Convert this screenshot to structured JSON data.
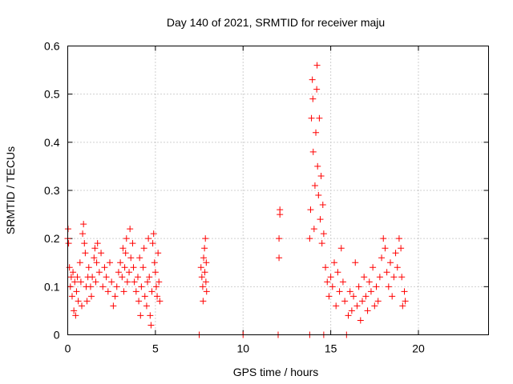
{
  "chart_data": {
    "type": "scatter",
    "title": "Day 140 of 2021, SRMTID for receiver maju",
    "xlabel": "GPS time / hours",
    "ylabel": "SRMTID / TECUs",
    "xlim": [
      0,
      24
    ],
    "ylim": [
      0,
      0.6
    ],
    "x_ticks": [
      0,
      5,
      10,
      15,
      20
    ],
    "y_ticks": [
      0,
      0.1,
      0.2,
      0.3,
      0.4,
      0.5,
      0.6
    ],
    "x_tick_labels": [
      "0",
      "5",
      "10",
      "15",
      "20"
    ],
    "y_tick_labels": [
      "0",
      "0.1",
      "0.2",
      "0.3",
      "0.4",
      "0.5",
      "0.6"
    ],
    "grid": true,
    "marker": "+",
    "series": [
      {
        "name": "SRMTID",
        "color": "#ff0000",
        "points": [
          [
            0.0,
            0.2
          ],
          [
            0.02,
            0.22
          ],
          [
            0.05,
            0.19
          ],
          [
            0.1,
            0.14
          ],
          [
            0.15,
            0.1
          ],
          [
            0.2,
            0.12
          ],
          [
            0.25,
            0.08
          ],
          [
            0.3,
            0.13
          ],
          [
            0.35,
            0.05
          ],
          [
            0.4,
            0.11
          ],
          [
            0.45,
            0.04
          ],
          [
            0.5,
            0.09
          ],
          [
            0.55,
            0.12
          ],
          [
            0.6,
            0.07
          ],
          [
            0.7,
            0.15
          ],
          [
            0.75,
            0.11
          ],
          [
            0.8,
            0.06
          ],
          [
            0.85,
            0.21
          ],
          [
            0.9,
            0.23
          ],
          [
            0.95,
            0.19
          ],
          [
            1.0,
            0.17
          ],
          [
            1.05,
            0.1
          ],
          [
            1.1,
            0.07
          ],
          [
            1.15,
            0.12
          ],
          [
            1.2,
            0.14
          ],
          [
            1.3,
            0.1
          ],
          [
            1.35,
            0.08
          ],
          [
            1.4,
            0.12
          ],
          [
            1.5,
            0.16
          ],
          [
            1.55,
            0.18
          ],
          [
            1.6,
            0.11
          ],
          [
            1.65,
            0.15
          ],
          [
            1.7,
            0.19
          ],
          [
            1.8,
            0.13
          ],
          [
            1.9,
            0.17
          ],
          [
            2.0,
            0.1
          ],
          [
            2.1,
            0.14
          ],
          [
            2.2,
            0.12
          ],
          [
            2.3,
            0.09
          ],
          [
            2.4,
            0.15
          ],
          [
            2.5,
            0.11
          ],
          [
            2.6,
            0.06
          ],
          [
            2.7,
            0.08
          ],
          [
            2.8,
            0.1
          ],
          [
            2.9,
            0.13
          ],
          [
            3.0,
            0.15
          ],
          [
            3.1,
            0.12
          ],
          [
            3.15,
            0.18
          ],
          [
            3.2,
            0.09
          ],
          [
            3.25,
            0.14
          ],
          [
            3.3,
            0.17
          ],
          [
            3.35,
            0.2
          ],
          [
            3.4,
            0.11
          ],
          [
            3.5,
            0.13
          ],
          [
            3.55,
            0.22
          ],
          [
            3.6,
            0.16
          ],
          [
            3.7,
            0.19
          ],
          [
            3.75,
            0.14
          ],
          [
            3.8,
            0.11
          ],
          [
            3.9,
            0.09
          ],
          [
            4.0,
            0.12
          ],
          [
            4.05,
            0.07
          ],
          [
            4.1,
            0.16
          ],
          [
            4.15,
            0.04
          ],
          [
            4.2,
            0.1
          ],
          [
            4.3,
            0.14
          ],
          [
            4.35,
            0.18
          ],
          [
            4.4,
            0.08
          ],
          [
            4.5,
            0.06
          ],
          [
            4.55,
            0.11
          ],
          [
            4.6,
            0.2
          ],
          [
            4.65,
            0.12
          ],
          [
            4.7,
            0.04
          ],
          [
            4.75,
            0.02
          ],
          [
            4.8,
            0.09
          ],
          [
            4.85,
            0.19
          ],
          [
            4.9,
            0.21
          ],
          [
            4.95,
            0.15
          ],
          [
            5.0,
            0.13
          ],
          [
            5.05,
            0.1
          ],
          [
            5.1,
            0.08
          ],
          [
            5.15,
            0.17
          ],
          [
            5.2,
            0.11
          ],
          [
            5.25,
            0.07
          ],
          [
            7.5,
            0.0
          ],
          [
            7.6,
            0.14
          ],
          [
            7.65,
            0.12
          ],
          [
            7.7,
            0.1
          ],
          [
            7.72,
            0.07
          ],
          [
            7.75,
            0.16
          ],
          [
            7.8,
            0.18
          ],
          [
            7.82,
            0.13
          ],
          [
            7.85,
            0.2
          ],
          [
            7.88,
            0.11
          ],
          [
            7.9,
            0.15
          ],
          [
            7.92,
            0.09
          ],
          [
            10.0,
            0.0
          ],
          [
            12.0,
            0.0
          ],
          [
            12.05,
            0.2
          ],
          [
            12.05,
            0.16
          ],
          [
            12.1,
            0.26
          ],
          [
            12.1,
            0.25
          ],
          [
            13.8,
            0.0
          ],
          [
            13.8,
            0.2
          ],
          [
            13.85,
            0.26
          ],
          [
            13.9,
            0.45
          ],
          [
            13.95,
            0.53
          ],
          [
            13.98,
            0.49
          ],
          [
            14.0,
            0.38
          ],
          [
            14.05,
            0.22
          ],
          [
            14.1,
            0.31
          ],
          [
            14.15,
            0.42
          ],
          [
            14.2,
            0.51
          ],
          [
            14.22,
            0.56
          ],
          [
            14.25,
            0.35
          ],
          [
            14.3,
            0.29
          ],
          [
            14.35,
            0.45
          ],
          [
            14.4,
            0.24
          ],
          [
            14.45,
            0.33
          ],
          [
            14.5,
            0.19
          ],
          [
            14.55,
            0.27
          ],
          [
            14.6,
            0.0
          ],
          [
            14.6,
            0.21
          ],
          [
            14.7,
            0.14
          ],
          [
            14.8,
            0.11
          ],
          [
            14.9,
            0.08
          ],
          [
            15.0,
            0.12
          ],
          [
            15.1,
            0.1
          ],
          [
            15.2,
            0.15
          ],
          [
            15.3,
            0.06
          ],
          [
            15.4,
            0.13
          ],
          [
            15.5,
            0.09
          ],
          [
            15.6,
            0.18
          ],
          [
            15.7,
            0.11
          ],
          [
            15.8,
            0.07
          ],
          [
            15.9,
            0.0
          ],
          [
            16.0,
            0.04
          ],
          [
            16.1,
            0.09
          ],
          [
            16.2,
            0.05
          ],
          [
            16.3,
            0.08
          ],
          [
            16.4,
            0.15
          ],
          [
            16.5,
            0.06
          ],
          [
            16.6,
            0.1
          ],
          [
            16.7,
            0.03
          ],
          [
            16.8,
            0.07
          ],
          [
            16.9,
            0.12
          ],
          [
            17.0,
            0.08
          ],
          [
            17.1,
            0.05
          ],
          [
            17.2,
            0.11
          ],
          [
            17.3,
            0.09
          ],
          [
            17.4,
            0.14
          ],
          [
            17.5,
            0.06
          ],
          [
            17.6,
            0.1
          ],
          [
            17.7,
            0.07
          ],
          [
            17.8,
            0.12
          ],
          [
            17.9,
            0.16
          ],
          [
            18.0,
            0.2
          ],
          [
            18.1,
            0.18
          ],
          [
            18.2,
            0.13
          ],
          [
            18.3,
            0.1
          ],
          [
            18.4,
            0.15
          ],
          [
            18.5,
            0.08
          ],
          [
            18.6,
            0.12
          ],
          [
            18.7,
            0.17
          ],
          [
            18.8,
            0.14
          ],
          [
            18.9,
            0.2
          ],
          [
            19.0,
            0.18
          ],
          [
            19.05,
            0.12
          ],
          [
            19.1,
            0.06
          ],
          [
            19.2,
            0.09
          ],
          [
            19.25,
            0.07
          ]
        ]
      }
    ]
  }
}
